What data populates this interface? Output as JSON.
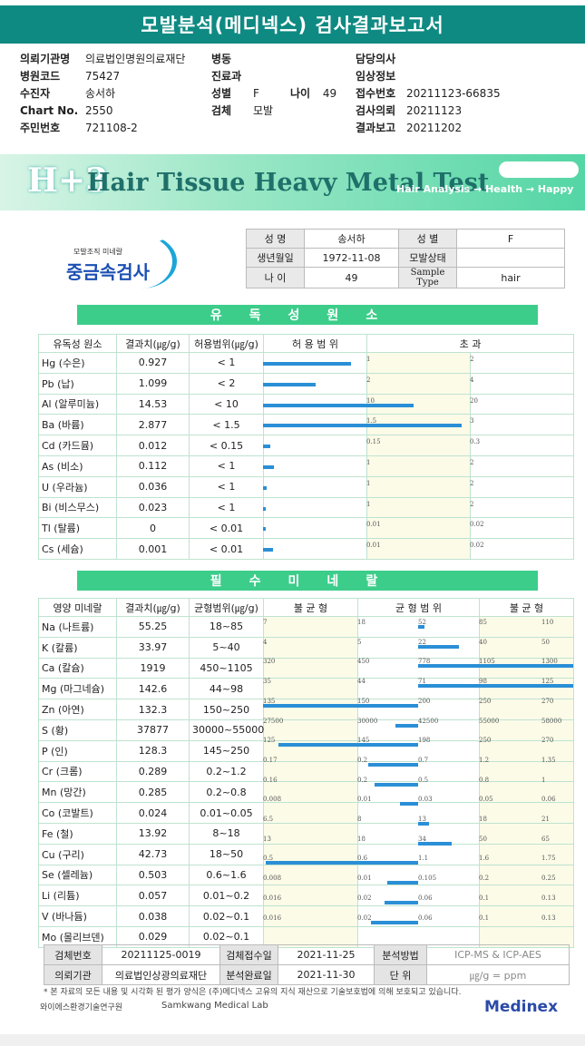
{
  "title": "모발분석(메디넥스) 검사결과보고서",
  "header_info": {
    "col1": [
      {
        "label": "의뢰기관명",
        "value": "의료법인명원의료재단"
      },
      {
        "label": "병원코드",
        "value": "75427"
      },
      {
        "label": "수진자",
        "value": "송서하"
      },
      {
        "label": "Chart No.",
        "value": "2550"
      },
      {
        "label": "주민번호",
        "value": "721108-2"
      }
    ],
    "col2": [
      {
        "label": "병동",
        "value": ""
      },
      {
        "label": "진료과",
        "value": ""
      },
      {
        "label": "성별",
        "value": "F"
      },
      {
        "label": "검체",
        "value": "모발"
      }
    ],
    "age_label": "나이",
    "age_value": "49",
    "col3": [
      {
        "label": "담당의사",
        "value": ""
      },
      {
        "label": "임상정보",
        "value": ""
      },
      {
        "label": "접수번호",
        "value": "20211123-66835"
      },
      {
        "label": "검사의뢰",
        "value": "20211123"
      },
      {
        "label": "결과보고",
        "value": "20211202"
      }
    ]
  },
  "banner": {
    "logo": "H+3",
    "main": "Hair Tissue Heavy Metal Test",
    "sub": "Hair Analysis → Health → Happy"
  },
  "brand": {
    "small": "모발조직 미네랄",
    "big": "중금속검사"
  },
  "patient_table": {
    "name_label": "성 명",
    "name": "송서하",
    "sex_label": "성 별",
    "sex": "F",
    "dob_label": "생년월일",
    "dob": "1972-11-08",
    "hair_label": "모발상태",
    "hair": "",
    "age_label": "나 이",
    "age": "49",
    "sample_label": "Sample Type",
    "sample": "hair"
  },
  "toxic_section": {
    "title": "유독성원소",
    "headers": {
      "name": "유독성 원소",
      "result": "결과치(㎍/g)",
      "range": "허용범위(㎍/g)",
      "allow": "허 용 범 위",
      "over": "초 과"
    },
    "rows": [
      {
        "name": "Hg (수은)",
        "result": "0.927",
        "range": "< 1",
        "t1": "1",
        "t2": "2",
        "value": 0.927,
        "lim1": 1,
        "lim2": 2
      },
      {
        "name": "Pb (납)",
        "result": "1.099",
        "range": "< 2",
        "t1": "2",
        "t2": "4",
        "value": 1.099,
        "lim1": 2,
        "lim2": 4
      },
      {
        "name": "Al (알루미늄)",
        "result": "14.53",
        "range": "< 10",
        "t1": "10",
        "t2": "20",
        "value": 14.53,
        "lim1": 10,
        "lim2": 20
      },
      {
        "name": "Ba (바륨)",
        "result": "2.877",
        "range": "< 1.5",
        "t1": "1.5",
        "t2": "3",
        "value": 2.877,
        "lim1": 1.5,
        "lim2": 3
      },
      {
        "name": "Cd (카드뮴)",
        "result": "0.012",
        "range": "< 0.15",
        "t1": "0.15",
        "t2": "0.3",
        "value": 0.012,
        "lim1": 0.15,
        "lim2": 0.3
      },
      {
        "name": "As (비소)",
        "result": "0.112",
        "range": "< 1",
        "t1": "1",
        "t2": "2",
        "value": 0.112,
        "lim1": 1,
        "lim2": 2
      },
      {
        "name": "U (우라늄)",
        "result": "0.036",
        "range": "< 1",
        "t1": "1",
        "t2": "2",
        "value": 0.036,
        "lim1": 1,
        "lim2": 2
      },
      {
        "name": "Bi (비스무스)",
        "result": "0.023",
        "range": "< 1",
        "t1": "1",
        "t2": "2",
        "value": 0.023,
        "lim1": 1,
        "lim2": 2
      },
      {
        "name": "Tl (탈륨)",
        "result": "0",
        "range": "< 0.01",
        "t1": "0.01",
        "t2": "0.02",
        "value": 0,
        "lim1": 0.01,
        "lim2": 0.02
      },
      {
        "name": "Cs (세슘)",
        "result": "0.001",
        "range": "< 0.01",
        "t1": "0.01",
        "t2": "0.02",
        "value": 0.001,
        "lim1": 0.01,
        "lim2": 0.02
      }
    ]
  },
  "mineral_section": {
    "title": "필수미네랄",
    "headers": {
      "name": "영양 미네랄",
      "result": "결과치(㎍/g)",
      "range": "균형범위(㎍/g)",
      "low": "불 균 형",
      "bal": "균 형 범 위",
      "high": "불 균 형"
    },
    "rows": [
      {
        "name": "Na (나트륨)",
        "result": "55.25",
        "range": "18~85",
        "ticks": [
          "7",
          "18",
          "52",
          "85",
          "110"
        ],
        "tv": [
          7,
          18,
          52,
          85,
          110
        ],
        "value": 55.25
      },
      {
        "name": "K (칼륨)",
        "result": "33.97",
        "range": "5~40",
        "ticks": [
          "4",
          "5",
          "22",
          "40",
          "50"
        ],
        "tv": [
          4,
          5,
          22,
          40,
          50
        ],
        "value": 33.97
      },
      {
        "name": "Ca (칼슘)",
        "result": "1919",
        "range": "450~1105",
        "ticks": [
          "320",
          "450",
          "778",
          "1105",
          "1300"
        ],
        "tv": [
          320,
          450,
          778,
          1105,
          1300
        ],
        "value": 1919
      },
      {
        "name": "Mg (마그네슘)",
        "result": "142.6",
        "range": "44~98",
        "ticks": [
          "35",
          "44",
          "71",
          "98",
          "125"
        ],
        "tv": [
          35,
          44,
          71,
          98,
          125
        ],
        "value": 142.6
      },
      {
        "name": "Zn (아연)",
        "result": "132.3",
        "range": "150~250",
        "ticks": [
          "135",
          "150",
          "200",
          "250",
          "270"
        ],
        "tv": [
          135,
          150,
          200,
          250,
          270
        ],
        "value": 132.3
      },
      {
        "name": "S (황)",
        "result": "37877",
        "range": "30000~55000",
        "ticks": [
          "27500",
          "30000",
          "42500",
          "55000",
          "58000"
        ],
        "tv": [
          27500,
          30000,
          42500,
          55000,
          58000
        ],
        "value": 37877
      },
      {
        "name": "P (인)",
        "result": "128.3",
        "range": "145~250",
        "ticks": [
          "125",
          "145",
          "198",
          "250",
          "270"
        ],
        "tv": [
          125,
          145,
          198,
          250,
          270
        ],
        "value": 128.3
      },
      {
        "name": "Cr (크롬)",
        "result": "0.289",
        "range": "0.2~1.2",
        "ticks": [
          "0.17",
          "0.2",
          "0.7",
          "1.2",
          "1.35"
        ],
        "tv": [
          0.17,
          0.2,
          0.7,
          1.2,
          1.35
        ],
        "value": 0.289
      },
      {
        "name": "Mn (망간)",
        "result": "0.285",
        "range": "0.2~0.8",
        "ticks": [
          "0.16",
          "0.2",
          "0.5",
          "0.8",
          "1"
        ],
        "tv": [
          0.16,
          0.2,
          0.5,
          0.8,
          1
        ],
        "value": 0.285
      },
      {
        "name": "Co (코발트)",
        "result": "0.024",
        "range": "0.01~0.05",
        "ticks": [
          "0.008",
          "0.01",
          "0.03",
          "0.05",
          "0.06"
        ],
        "tv": [
          0.008,
          0.01,
          0.03,
          0.05,
          0.06
        ],
        "value": 0.024
      },
      {
        "name": "Fe (철)",
        "result": "13.92",
        "range": "8~18",
        "ticks": [
          "6.5",
          "8",
          "13",
          "18",
          "21"
        ],
        "tv": [
          6.5,
          8,
          13,
          18,
          21
        ],
        "value": 13.92
      },
      {
        "name": "Cu (구리)",
        "result": "42.73",
        "range": "18~50",
        "ticks": [
          "13",
          "18",
          "34",
          "50",
          "65"
        ],
        "tv": [
          13,
          18,
          34,
          50,
          65
        ],
        "value": 42.73
      },
      {
        "name": "Se (셀레늄)",
        "result": "0.503",
        "range": "0.6~1.6",
        "ticks": [
          "0.5",
          "0.6",
          "1.1",
          "1.6",
          "1.75"
        ],
        "tv": [
          0.5,
          0.6,
          1.1,
          1.6,
          1.75
        ],
        "value": 0.503
      },
      {
        "name": "Li (리튬)",
        "result": "0.057",
        "range": "0.01~0.2",
        "ticks": [
          "0.008",
          "0.01",
          "0.105",
          "0.2",
          "0.25"
        ],
        "tv": [
          0.008,
          0.01,
          0.105,
          0.2,
          0.25
        ],
        "value": 0.057
      },
      {
        "name": "V (바나듐)",
        "result": "0.038",
        "range": "0.02~0.1",
        "ticks": [
          "0.016",
          "0.02",
          "0.06",
          "0.1",
          "0.13"
        ],
        "tv": [
          0.016,
          0.02,
          0.06,
          0.1,
          0.13
        ],
        "value": 0.038
      },
      {
        "name": "Mo (몰리브덴)",
        "result": "0.029",
        "range": "0.02~0.1",
        "ticks": [
          "0.016",
          "0.02",
          "0.06",
          "0.1",
          "0.13"
        ],
        "tv": [
          0.016,
          0.02,
          0.06,
          0.1,
          0.13
        ],
        "value": 0.029
      }
    ]
  },
  "footer_table": {
    "specimen_no_label": "검체번호",
    "specimen_no": "20211125-0019",
    "received_label": "검체접수일",
    "received": "2021-11-25",
    "method_label": "분석방법",
    "method": "ICP-MS & ICP-AES",
    "requester_label": "의뢰기관",
    "requester": "의료법인상광의료재단",
    "completed_label": "분석완료일",
    "completed": "2021-11-30",
    "unit_label": "단 위",
    "unit": "㎍/g = ppm"
  },
  "note": "* 본 자료의 모든 내용 및 시각화 된 평가 양식은 (주)메디넥스 고유의 지식 재산으로 기술보호법에 의해 보호되고 있습니다.",
  "labs": {
    "lab1": "와이에스환경기술연구원",
    "lab2": "Samkwang Medical Lab",
    "medinex": "Medinex"
  },
  "colors": {
    "accent": "#0e8a82",
    "section": "#3ccd8a",
    "bar": "#2a8fd6"
  }
}
